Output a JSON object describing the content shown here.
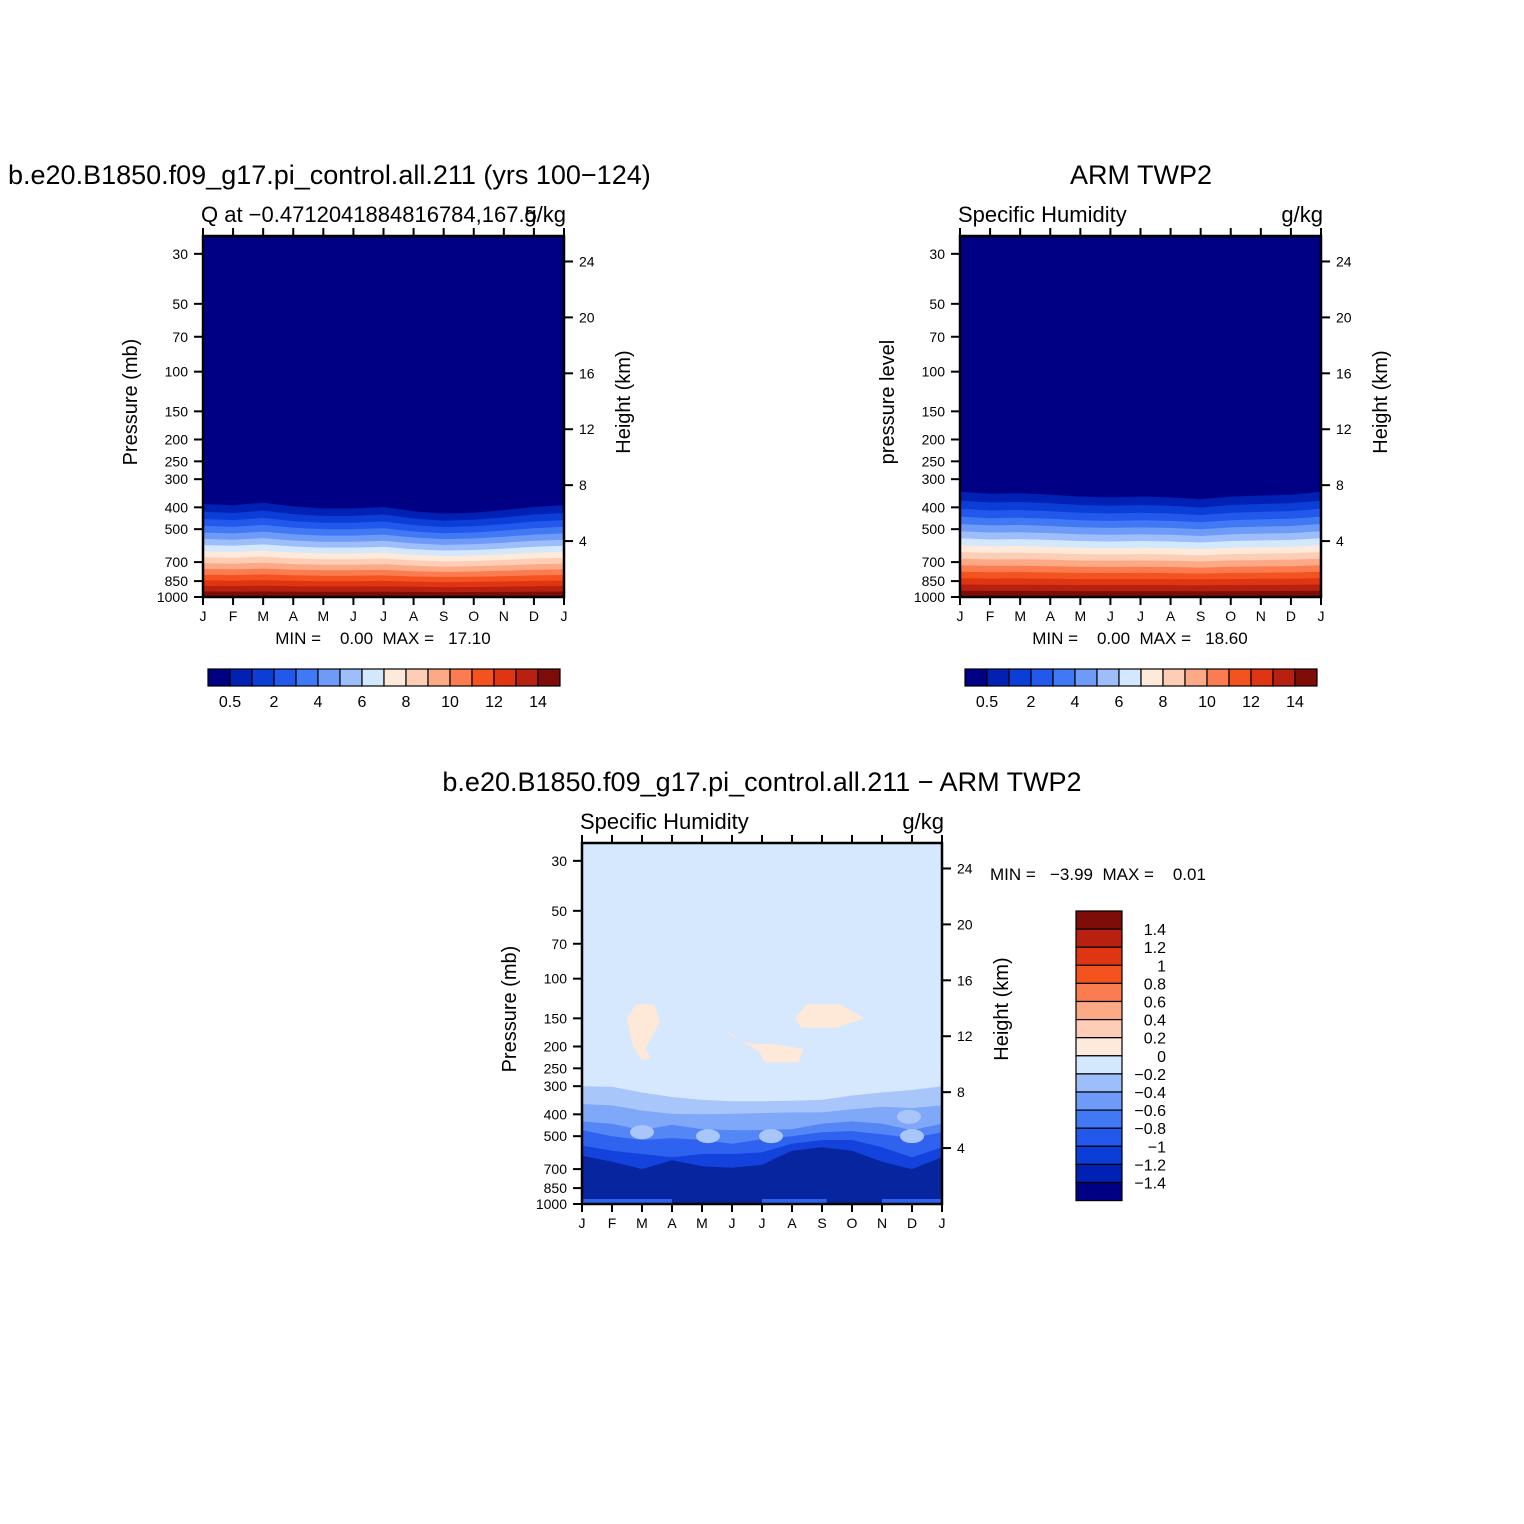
{
  "chart_data": [
    {
      "type": "heatmap",
      "title": "b.e20.B1850.f09_g17.pi_control.all.211 (yrs 100-124)",
      "subtitle_left": "Q at -0.4712041884816784,167.5",
      "subtitle_right": "g/kg",
      "ylabel": "Pressure (mb)",
      "ylabel_right": "Height (km)",
      "x_ticks": [
        "J",
        "F",
        "M",
        "A",
        "M",
        "J",
        "J",
        "A",
        "S",
        "O",
        "N",
        "D",
        "J"
      ],
      "y_ticks": [
        30,
        50,
        70,
        100,
        150,
        200,
        250,
        300,
        400,
        500,
        700,
        850,
        1000
      ],
      "y_right_ticks": [
        24,
        20,
        16,
        12,
        8,
        4
      ],
      "ylim": [
        1000,
        25
      ],
      "log_scale_y": true,
      "stats": "MIN =    0.00  MAX =   17.10",
      "contour_levels": [
        0.5,
        1,
        2,
        3,
        4,
        5,
        6,
        7,
        8,
        9,
        10,
        11,
        12,
        13,
        14
      ],
      "colorbar_labels": [
        "0.5",
        "2",
        "4",
        "6",
        "8",
        "10",
        "12",
        "14"
      ],
      "moisture_top_pressure_mb": [
        350,
        355,
        345,
        360,
        368,
        368,
        362,
        380,
        390,
        386,
        375,
        362,
        355
      ]
    },
    {
      "type": "heatmap",
      "title": "ARM TWP2",
      "subtitle_left": "Specific Humidity",
      "subtitle_right": "g/kg",
      "ylabel": "pressure level",
      "ylabel_right": "Height (km)",
      "x_ticks": [
        "J",
        "F",
        "M",
        "A",
        "M",
        "J",
        "J",
        "A",
        "S",
        "O",
        "N",
        "D",
        "J"
      ],
      "y_ticks": [
        30,
        50,
        70,
        100,
        150,
        200,
        250,
        300,
        400,
        500,
        700,
        850,
        1000
      ],
      "y_right_ticks": [
        24,
        20,
        16,
        12,
        8,
        4
      ],
      "ylim": [
        1000,
        25
      ],
      "log_scale_y": true,
      "stats": "MIN =    0.00  MAX =   18.60",
      "contour_levels": [
        0.5,
        1,
        2,
        3,
        4,
        5,
        6,
        7,
        8,
        9,
        10,
        11,
        12,
        13,
        14
      ],
      "colorbar_labels": [
        "0.5",
        "2",
        "4",
        "6",
        "8",
        "10",
        "12",
        "14"
      ],
      "moisture_top_pressure_mb": [
        305,
        312,
        310,
        315,
        322,
        325,
        322,
        325,
        332,
        322,
        318,
        315,
        305
      ]
    },
    {
      "type": "heatmap",
      "title": "b.e20.B1850.f09_g17.pi_control.all.211 - ARM TWP2",
      "subtitle_left": "Specific Humidity",
      "subtitle_right": "g/kg",
      "ylabel": "Pressure (mb)",
      "ylabel_right": "Height (km)",
      "x_ticks": [
        "J",
        "F",
        "M",
        "A",
        "M",
        "J",
        "J",
        "A",
        "S",
        "O",
        "N",
        "D",
        "J"
      ],
      "y_ticks": [
        30,
        50,
        70,
        100,
        150,
        200,
        250,
        300,
        400,
        500,
        700,
        850,
        1000
      ],
      "y_right_ticks": [
        24,
        20,
        16,
        12,
        8,
        4
      ],
      "ylim": [
        1000,
        25
      ],
      "log_scale_y": true,
      "stats": "MIN =   -3.99  MAX =    0.01",
      "contour_levels": [
        -1.4,
        -1.2,
        -1,
        -0.8,
        -0.6,
        -0.4,
        -0.2,
        0,
        0.2,
        0.4,
        0.6,
        0.8,
        1,
        1.2,
        1.4
      ],
      "colorbar_labels": [
        "1.4",
        "1.2",
        "1",
        "0.8",
        "0.6",
        "0.4",
        "0.2",
        "0",
        "-0.2",
        "-0.4",
        "-0.6",
        "-0.8",
        "-1",
        "-1.2",
        "-1.4"
      ]
    }
  ],
  "palette": [
    "#000085",
    "#0021b3",
    "#0b3ed6",
    "#2358ed",
    "#4179f5",
    "#6e9af8",
    "#9dbdfb",
    "#d3e7fd",
    "#feeada",
    "#fdcdb5",
    "#fca986",
    "#fb7c50",
    "#f4521e",
    "#df3512",
    "#b8200f",
    "#7e0d09"
  ]
}
